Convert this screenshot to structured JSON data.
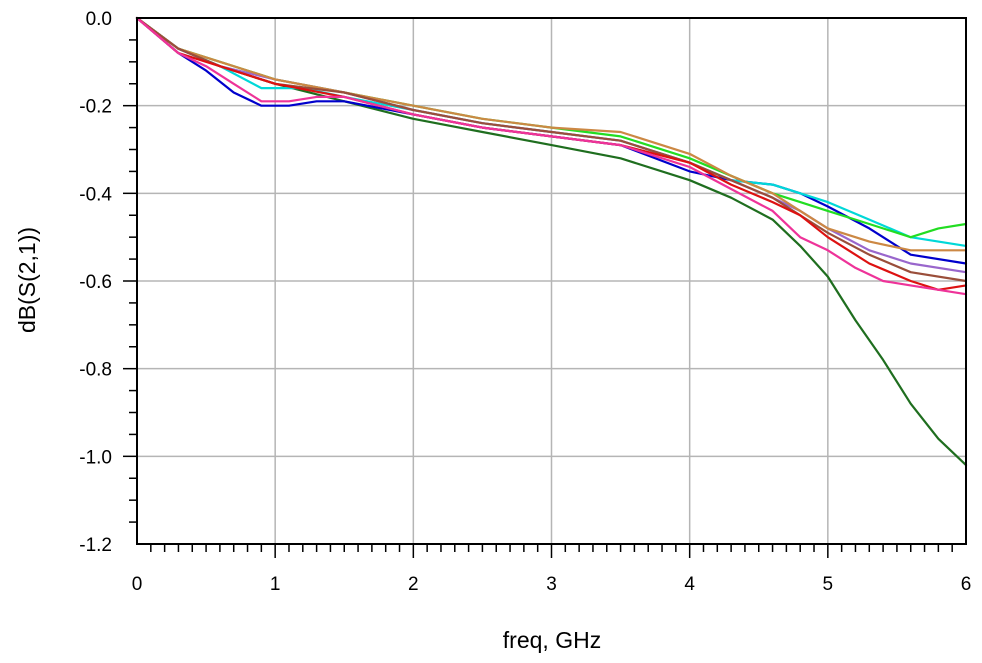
{
  "chart_data": {
    "type": "line",
    "xlabel": "freq, GHz",
    "ylabel": "dB(S(2,1))",
    "xlim": [
      0,
      6
    ],
    "ylim": [
      -1.2,
      0.0
    ],
    "grid": true,
    "x_ticks": [
      0,
      1,
      2,
      3,
      4,
      5,
      6
    ],
    "x_tick_labels": [
      "0",
      "1",
      "2",
      "3",
      "4",
      "5",
      "6"
    ],
    "y_ticks": [
      0.0,
      -0.2,
      -0.4,
      -0.6,
      -0.8,
      -1.0,
      -1.2
    ],
    "y_tick_labels": [
      "0.0",
      "-0.2",
      "-0.4",
      "-0.6",
      "-0.8",
      "-1.0",
      "-1.2"
    ],
    "series": [
      {
        "color": "#1f6e1f",
        "points": [
          [
            0,
            0
          ],
          [
            0.3,
            -0.07
          ],
          [
            0.6,
            -0.11
          ],
          [
            1.0,
            -0.15
          ],
          [
            1.5,
            -0.19
          ],
          [
            2.0,
            -0.23
          ],
          [
            2.5,
            -0.26
          ],
          [
            3.0,
            -0.29
          ],
          [
            3.5,
            -0.32
          ],
          [
            4.0,
            -0.37
          ],
          [
            4.3,
            -0.41
          ],
          [
            4.6,
            -0.46
          ],
          [
            4.8,
            -0.52
          ],
          [
            5.0,
            -0.59
          ],
          [
            5.2,
            -0.69
          ],
          [
            5.4,
            -0.78
          ],
          [
            5.6,
            -0.88
          ],
          [
            5.8,
            -0.96
          ],
          [
            6.0,
            -1.02
          ]
        ]
      },
      {
        "color": "#0000cc",
        "points": [
          [
            0,
            0
          ],
          [
            0.3,
            -0.08
          ],
          [
            0.5,
            -0.12
          ],
          [
            0.7,
            -0.17
          ],
          [
            0.9,
            -0.2
          ],
          [
            1.1,
            -0.2
          ],
          [
            1.3,
            -0.19
          ],
          [
            1.5,
            -0.19
          ],
          [
            2.0,
            -0.22
          ],
          [
            2.5,
            -0.25
          ],
          [
            3.0,
            -0.27
          ],
          [
            3.5,
            -0.29
          ],
          [
            4.0,
            -0.35
          ],
          [
            4.3,
            -0.37
          ],
          [
            4.6,
            -0.38
          ],
          [
            4.8,
            -0.4
          ],
          [
            5.0,
            -0.43
          ],
          [
            5.3,
            -0.48
          ],
          [
            5.6,
            -0.54
          ],
          [
            6.0,
            -0.56
          ]
        ]
      },
      {
        "color": "#00d8d8",
        "points": [
          [
            0,
            0
          ],
          [
            0.3,
            -0.07
          ],
          [
            0.6,
            -0.11
          ],
          [
            0.9,
            -0.16
          ],
          [
            1.2,
            -0.16
          ],
          [
            1.5,
            -0.18
          ],
          [
            2.0,
            -0.21
          ],
          [
            2.5,
            -0.24
          ],
          [
            3.0,
            -0.26
          ],
          [
            3.5,
            -0.28
          ],
          [
            4.0,
            -0.33
          ],
          [
            4.3,
            -0.37
          ],
          [
            4.6,
            -0.38
          ],
          [
            4.8,
            -0.4
          ],
          [
            5.0,
            -0.42
          ],
          [
            5.3,
            -0.46
          ],
          [
            5.6,
            -0.5
          ],
          [
            6.0,
            -0.52
          ]
        ]
      },
      {
        "color": "#22dd22",
        "points": [
          [
            0,
            0
          ],
          [
            0.3,
            -0.07
          ],
          [
            0.6,
            -0.1
          ],
          [
            1.0,
            -0.14
          ],
          [
            1.5,
            -0.17
          ],
          [
            2.0,
            -0.2
          ],
          [
            2.5,
            -0.23
          ],
          [
            3.0,
            -0.25
          ],
          [
            3.5,
            -0.27
          ],
          [
            4.0,
            -0.32
          ],
          [
            4.3,
            -0.36
          ],
          [
            4.6,
            -0.4
          ],
          [
            4.8,
            -0.42
          ],
          [
            5.0,
            -0.44
          ],
          [
            5.3,
            -0.47
          ],
          [
            5.6,
            -0.5
          ],
          [
            5.8,
            -0.48
          ],
          [
            6.0,
            -0.47
          ]
        ]
      },
      {
        "color": "#9966cc",
        "points": [
          [
            0,
            0
          ],
          [
            0.3,
            -0.07
          ],
          [
            0.6,
            -0.11
          ],
          [
            1.0,
            -0.14
          ],
          [
            1.5,
            -0.17
          ],
          [
            2.0,
            -0.21
          ],
          [
            2.5,
            -0.24
          ],
          [
            3.0,
            -0.26
          ],
          [
            3.5,
            -0.28
          ],
          [
            4.0,
            -0.33
          ],
          [
            4.3,
            -0.37
          ],
          [
            4.6,
            -0.41
          ],
          [
            4.8,
            -0.44
          ],
          [
            5.0,
            -0.48
          ],
          [
            5.3,
            -0.53
          ],
          [
            5.6,
            -0.56
          ],
          [
            6.0,
            -0.58
          ]
        ]
      },
      {
        "color": "#cc8844",
        "points": [
          [
            0,
            0
          ],
          [
            0.3,
            -0.07
          ],
          [
            0.6,
            -0.1
          ],
          [
            1.0,
            -0.14
          ],
          [
            1.5,
            -0.17
          ],
          [
            2.0,
            -0.2
          ],
          [
            2.5,
            -0.23
          ],
          [
            3.0,
            -0.25
          ],
          [
            3.5,
            -0.26
          ],
          [
            4.0,
            -0.31
          ],
          [
            4.3,
            -0.36
          ],
          [
            4.6,
            -0.4
          ],
          [
            4.8,
            -0.44
          ],
          [
            5.0,
            -0.48
          ],
          [
            5.3,
            -0.51
          ],
          [
            5.6,
            -0.53
          ],
          [
            6.0,
            -0.53
          ]
        ]
      },
      {
        "color": "#9a4e3a",
        "points": [
          [
            0,
            0
          ],
          [
            0.3,
            -0.07
          ],
          [
            0.6,
            -0.11
          ],
          [
            1.0,
            -0.15
          ],
          [
            1.5,
            -0.17
          ],
          [
            2.0,
            -0.21
          ],
          [
            2.5,
            -0.24
          ],
          [
            3.0,
            -0.26
          ],
          [
            3.5,
            -0.28
          ],
          [
            4.0,
            -0.33
          ],
          [
            4.3,
            -0.37
          ],
          [
            4.6,
            -0.41
          ],
          [
            4.8,
            -0.45
          ],
          [
            5.0,
            -0.49
          ],
          [
            5.3,
            -0.54
          ],
          [
            5.6,
            -0.58
          ],
          [
            6.0,
            -0.6
          ]
        ]
      },
      {
        "color": "#dd1111",
        "points": [
          [
            0,
            0
          ],
          [
            0.3,
            -0.08
          ],
          [
            0.6,
            -0.11
          ],
          [
            1.0,
            -0.15
          ],
          [
            1.5,
            -0.18
          ],
          [
            2.0,
            -0.22
          ],
          [
            2.5,
            -0.25
          ],
          [
            3.0,
            -0.27
          ],
          [
            3.5,
            -0.29
          ],
          [
            4.0,
            -0.33
          ],
          [
            4.3,
            -0.38
          ],
          [
            4.6,
            -0.42
          ],
          [
            4.8,
            -0.45
          ],
          [
            5.0,
            -0.5
          ],
          [
            5.3,
            -0.56
          ],
          [
            5.6,
            -0.6
          ],
          [
            5.8,
            -0.62
          ],
          [
            6.0,
            -0.61
          ]
        ]
      },
      {
        "color": "#ee3399",
        "points": [
          [
            0,
            0
          ],
          [
            0.3,
            -0.08
          ],
          [
            0.5,
            -0.11
          ],
          [
            0.7,
            -0.15
          ],
          [
            0.9,
            -0.19
          ],
          [
            1.1,
            -0.19
          ],
          [
            1.3,
            -0.18
          ],
          [
            1.5,
            -0.18
          ],
          [
            2.0,
            -0.22
          ],
          [
            2.5,
            -0.25
          ],
          [
            3.0,
            -0.27
          ],
          [
            3.5,
            -0.29
          ],
          [
            4.0,
            -0.34
          ],
          [
            4.3,
            -0.39
          ],
          [
            4.6,
            -0.44
          ],
          [
            4.8,
            -0.5
          ],
          [
            5.0,
            -0.53
          ],
          [
            5.2,
            -0.57
          ],
          [
            5.4,
            -0.6
          ],
          [
            5.6,
            -0.61
          ],
          [
            5.8,
            -0.62
          ],
          [
            6.0,
            -0.63
          ]
        ]
      }
    ]
  }
}
